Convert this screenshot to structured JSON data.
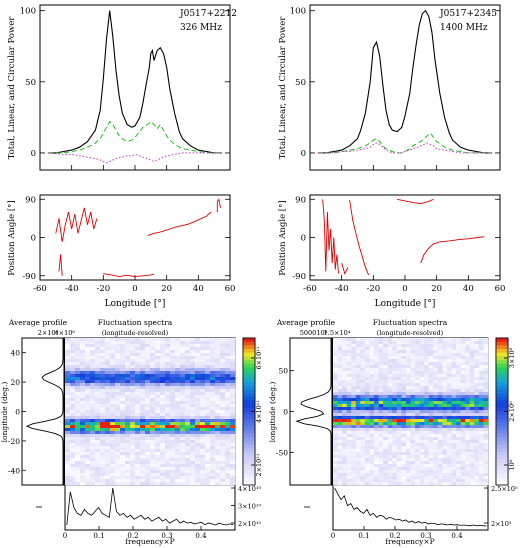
{
  "chart_data": [
    {
      "type": "line",
      "panel": "top-left polarization profile",
      "annotations": [
        "J0517+2212",
        "326 MHz"
      ],
      "ylabel": "Total, Linear, and Circular Power",
      "xlim": [
        -60,
        60
      ],
      "ylim": [
        -12,
        104
      ],
      "yticks": [
        0,
        50,
        100
      ],
      "series": [
        {
          "color": "#000000",
          "style": "solid",
          "x": [
            -55,
            -50,
            -45,
            -40,
            -35,
            -30,
            -25,
            -22,
            -20,
            -18,
            -16,
            -14,
            -12,
            -10,
            -8,
            -5,
            -2,
            0,
            3,
            5,
            7,
            9,
            10,
            11,
            12,
            14,
            16,
            18,
            20,
            22,
            25,
            28,
            30,
            35,
            40,
            45,
            50,
            55
          ],
          "y": [
            0,
            0,
            1,
            2,
            4,
            8,
            16,
            30,
            52,
            80,
            100,
            82,
            58,
            40,
            28,
            20,
            18,
            19,
            25,
            35,
            48,
            60,
            70,
            72,
            65,
            72,
            74,
            70,
            60,
            45,
            28,
            15,
            10,
            5,
            2,
            1,
            0,
            0
          ]
        },
        {
          "color": "#22bb22",
          "style": "dashed",
          "x": [
            -55,
            -45,
            -40,
            -35,
            -30,
            -25,
            -22,
            -20,
            -18,
            -16,
            -14,
            -12,
            -10,
            -8,
            -5,
            -2,
            0,
            3,
            5,
            8,
            10,
            12,
            14,
            16,
            18,
            20,
            22,
            25,
            30,
            35,
            40,
            45,
            50,
            55
          ],
          "y": [
            0,
            0,
            1,
            2,
            4,
            7,
            10,
            14,
            18,
            22,
            20,
            16,
            12,
            10,
            8,
            9,
            11,
            15,
            18,
            20,
            22,
            20,
            17,
            20,
            16,
            12,
            9,
            6,
            3,
            2,
            1,
            0,
            0,
            0
          ]
        },
        {
          "color": "#cc33cc",
          "style": "dotted",
          "x": [
            -55,
            -45,
            -40,
            -35,
            -30,
            -25,
            -22,
            -20,
            -18,
            -16,
            -14,
            -12,
            -10,
            -8,
            -5,
            -2,
            0,
            3,
            5,
            8,
            10,
            12,
            14,
            16,
            18,
            20,
            25,
            30,
            35,
            40,
            45,
            50,
            55
          ],
          "y": [
            0,
            -1,
            -1,
            -2,
            -3,
            -4,
            -5,
            -6,
            -7,
            -6,
            -5,
            -4,
            -3,
            -3,
            -2,
            -2,
            -1,
            -2,
            -3,
            -4,
            -5,
            -6,
            -5,
            -4,
            -3,
            -2,
            -1,
            0,
            0,
            0,
            0,
            0,
            0
          ]
        }
      ]
    },
    {
      "type": "line",
      "panel": "top-right polarization profile",
      "annotations": [
        "J0517+2345",
        "1400 MHz"
      ],
      "ylabel": "Total, Linear, and Circular Power",
      "xlim": [
        -60,
        60
      ],
      "ylim": [
        -12,
        104
      ],
      "yticks": [
        0,
        50,
        100
      ],
      "series": [
        {
          "color": "#000000",
          "style": "solid",
          "x": [
            -55,
            -50,
            -45,
            -40,
            -35,
            -30,
            -28,
            -25,
            -22,
            -20,
            -18,
            -16,
            -14,
            -12,
            -10,
            -8,
            -5,
            -2,
            0,
            3,
            5,
            7,
            9,
            11,
            13,
            15,
            17,
            19,
            22,
            25,
            28,
            30,
            35,
            40,
            45,
            50,
            55
          ],
          "y": [
            0,
            0,
            1,
            2,
            5,
            10,
            16,
            28,
            50,
            74,
            78,
            68,
            48,
            30,
            20,
            16,
            15,
            18,
            26,
            42,
            60,
            76,
            90,
            98,
            100,
            96,
            85,
            65,
            42,
            25,
            14,
            9,
            4,
            2,
            1,
            0,
            0
          ]
        },
        {
          "color": "#22bb22",
          "style": "dashed",
          "x": [
            -55,
            -45,
            -40,
            -35,
            -30,
            -25,
            -22,
            -20,
            -18,
            -16,
            -14,
            -12,
            -10,
            -8,
            -5,
            -2,
            0,
            3,
            5,
            8,
            10,
            12,
            14,
            16,
            18,
            20,
            25,
            30,
            35,
            40,
            45,
            50,
            55
          ],
          "y": [
            0,
            0,
            1,
            2,
            3,
            5,
            7,
            9,
            10,
            8,
            5,
            3,
            2,
            1,
            0,
            0,
            1,
            3,
            5,
            7,
            8,
            10,
            12,
            14,
            11,
            8,
            4,
            2,
            1,
            0,
            0,
            0,
            0
          ]
        },
        {
          "color": "#cc33cc",
          "style": "dotted",
          "x": [
            -55,
            -45,
            -40,
            -35,
            -30,
            -25,
            -22,
            -20,
            -18,
            -16,
            -14,
            -12,
            -10,
            -8,
            -5,
            -2,
            0,
            3,
            5,
            8,
            10,
            12,
            14,
            16,
            18,
            20,
            25,
            30,
            35,
            40,
            45,
            50,
            55
          ],
          "y": [
            0,
            0,
            1,
            1,
            2,
            3,
            4,
            6,
            7,
            6,
            4,
            2,
            1,
            0,
            0,
            0,
            1,
            2,
            3,
            4,
            5,
            6,
            7,
            6,
            5,
            3,
            2,
            1,
            0,
            0,
            0,
            0,
            0
          ]
        }
      ]
    },
    {
      "type": "scatter",
      "panel": "left position angle",
      "ylabel": "Position Angle [°]",
      "xlabel": "Longitude [°]",
      "xlim": [
        -60,
        60
      ],
      "ylim": [
        -100,
        100
      ],
      "xticks": [
        -60,
        -40,
        -20,
        0,
        20,
        40,
        60
      ],
      "yticks": [
        -90,
        0,
        90
      ],
      "color": "#dd0000",
      "segments": [
        [
          [
            -50,
            10
          ],
          [
            -48,
            45
          ],
          [
            -46,
            -10
          ],
          [
            -44,
            30
          ],
          [
            -42,
            60
          ],
          [
            -40,
            20
          ],
          [
            -38,
            55
          ],
          [
            -36,
            10
          ],
          [
            -34,
            40
          ],
          [
            -32,
            70
          ],
          [
            -30,
            30
          ],
          [
            -28,
            60
          ],
          [
            -26,
            20
          ],
          [
            -24,
            45
          ]
        ],
        [
          [
            -48,
            -80
          ],
          [
            -47,
            -40
          ],
          [
            -46,
            -90
          ]
        ],
        [
          [
            -20,
            -85
          ],
          [
            -15,
            -88
          ],
          [
            -10,
            -92
          ],
          [
            -5,
            -89
          ],
          [
            0,
            -92
          ],
          [
            5,
            -90
          ],
          [
            10,
            -88
          ],
          [
            12,
            -86
          ]
        ],
        [
          [
            8,
            5
          ],
          [
            12,
            10
          ],
          [
            15,
            12
          ],
          [
            18,
            15
          ],
          [
            22,
            20
          ],
          [
            26,
            25
          ],
          [
            30,
            28
          ],
          [
            34,
            32
          ],
          [
            38,
            38
          ],
          [
            42,
            45
          ],
          [
            45,
            50
          ],
          [
            48,
            60
          ]
        ],
        [
          [
            52,
            60
          ],
          [
            52,
            85
          ],
          [
            53,
            90
          ],
          [
            54,
            70
          ]
        ]
      ]
    },
    {
      "type": "scatter",
      "panel": "right position angle",
      "ylabel": "Position Angle [°]",
      "xlabel": "Longitude [°]",
      "xlim": [
        -60,
        60
      ],
      "ylim": [
        -100,
        100
      ],
      "xticks": [
        -60,
        -40,
        -20,
        0,
        20,
        40,
        60
      ],
      "yticks": [
        -90,
        0,
        90
      ],
      "color": "#dd0000",
      "segments": [
        [
          [
            -52,
            90
          ],
          [
            -51,
            40
          ],
          [
            -50,
            -80
          ],
          [
            -49,
            60
          ],
          [
            -48,
            -30
          ],
          [
            -47,
            20
          ],
          [
            -46,
            -60
          ],
          [
            -45,
            0
          ],
          [
            -44,
            -75
          ],
          [
            -43,
            -40
          ],
          [
            -42,
            -85
          ]
        ],
        [
          [
            -40,
            -60
          ],
          [
            -38,
            -85
          ],
          [
            -36,
            -70
          ]
        ],
        [
          [
            -35,
            88
          ],
          [
            -33,
            40
          ],
          [
            -31,
            10
          ],
          [
            -29,
            -20
          ],
          [
            -27,
            -45
          ],
          [
            -25,
            -70
          ],
          [
            -23,
            -88
          ]
        ],
        [
          [
            -5,
            90
          ],
          [
            0,
            86
          ],
          [
            5,
            82
          ],
          [
            10,
            80
          ],
          [
            15,
            85
          ],
          [
            18,
            90
          ]
        ],
        [
          [
            10,
            -60
          ],
          [
            12,
            -40
          ],
          [
            15,
            -25
          ],
          [
            18,
            -15
          ],
          [
            22,
            -10
          ],
          [
            28,
            -8
          ],
          [
            34,
            -5
          ],
          [
            40,
            -3
          ],
          [
            46,
            0
          ],
          [
            50,
            2
          ]
        ]
      ]
    },
    {
      "type": "heatmap",
      "panel": "left LRFS",
      "headers": {
        "profile": "Average profile",
        "fluct": "Fluctuation spectra",
        "sub": "(longitude-resolved)"
      },
      "profile_ticks": [
        "2×10⁶",
        "4×10⁶"
      ],
      "ylabel": "longitude (deg.)",
      "yticks": [
        40,
        20,
        0,
        -20,
        -40
      ],
      "ylim": [
        -50,
        50
      ],
      "bands": [
        {
          "center": 23,
          "width": 5,
          "strength": 0.55
        },
        {
          "center": -10,
          "width": 4,
          "strength": 0.95
        }
      ],
      "hotspot": {
        "freq": 0.13,
        "lon": -10
      },
      "colorbar_ticks": [
        "6×10¹¹",
        "4×10¹¹",
        "2×10¹¹"
      ],
      "xlabel": "frequency×P",
      "xticks": [
        0,
        0.1,
        0.2,
        0.3,
        0.4
      ],
      "spectrum_ticks": [
        "4×10¹⁰",
        "3×10¹⁰",
        "2×10¹⁰"
      ],
      "spectrum": [
        0.05,
        0.9,
        0.5,
        0.35,
        0.3,
        0.45,
        0.35,
        0.3,
        0.4,
        0.5,
        0.35,
        0.3,
        0.25,
        1.0,
        0.4,
        0.3,
        0.35,
        0.25,
        0.3,
        0.2,
        0.25,
        0.3,
        0.2,
        0.25,
        0.15,
        0.2,
        0.25,
        0.15,
        0.2,
        0.1,
        0.15,
        0.2,
        0.1,
        0.15,
        0.1,
        0.12,
        0.08,
        0.1,
        0.12,
        0.06,
        0.1,
        0.08,
        0.05,
        0.1,
        0.07,
        0.05,
        0.08,
        0.06
      ]
    },
    {
      "type": "heatmap",
      "panel": "right LRFS",
      "headers": {
        "profile": "Average profile",
        "fluct": "Fluctuation spectra",
        "sub": "(longitude-resolved)"
      },
      "profile_ticks": [
        "5000",
        "10⁴",
        "1.5×10⁴"
      ],
      "ylabel": "longitude (deg.)",
      "yticks": [
        50,
        0,
        -50
      ],
      "ylim": [
        -90,
        90
      ],
      "bands": [
        {
          "center": 10,
          "width": 9,
          "strength": 0.8
        },
        {
          "center": -12,
          "width": 6,
          "strength": 0.9
        }
      ],
      "hotspot": {
        "freq": 0.05,
        "lon": -12
      },
      "colorbar_ticks": [
        "3×10⁸",
        "2×10⁸",
        "10⁸"
      ],
      "xlabel": "frequency×P",
      "xticks": [
        0,
        0.1,
        0.2,
        0.3,
        0.4
      ],
      "spectrum_ticks": [
        "2.5×10⁵",
        "2×10⁵"
      ],
      "spectrum": [
        1.0,
        0.85,
        0.7,
        0.8,
        0.55,
        0.6,
        0.45,
        0.5,
        0.4,
        0.35,
        0.45,
        0.3,
        0.35,
        0.25,
        0.3,
        0.28,
        0.2,
        0.25,
        0.22,
        0.18,
        0.2,
        0.15,
        0.18,
        0.12,
        0.15,
        0.1,
        0.14,
        0.1,
        0.12,
        0.08,
        0.1,
        0.09,
        0.06,
        0.08,
        0.07,
        0.05,
        0.07,
        0.05,
        0.06,
        0.04,
        0.05,
        0.04,
        0.03,
        0.05,
        0.03,
        0.04,
        0.03,
        0.03
      ]
    }
  ]
}
